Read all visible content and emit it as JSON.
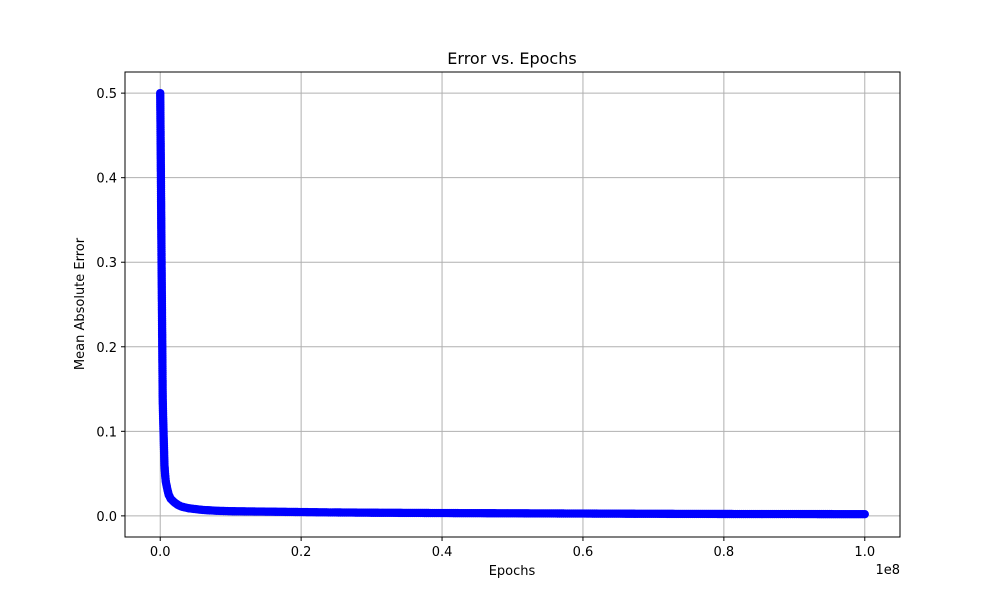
{
  "chart_data": {
    "type": "line",
    "title": "Error vs. Epochs",
    "xlabel": "Epochs",
    "ylabel": "Mean Absolute Error",
    "x_offset_label": "1e8",
    "xlim": [
      -0.05,
      1.05
    ],
    "ylim": [
      -0.025,
      0.525
    ],
    "x_scale_factor": 100000000,
    "x_ticks": [
      0.0,
      0.2,
      0.4,
      0.6,
      0.8,
      1.0
    ],
    "x_tick_labels": [
      "0.0",
      "0.2",
      "0.4",
      "0.6",
      "0.8",
      "1.0"
    ],
    "y_ticks": [
      0.0,
      0.1,
      0.2,
      0.3,
      0.4,
      0.5
    ],
    "y_tick_labels": [
      "0.0",
      "0.1",
      "0.2",
      "0.3",
      "0.4",
      "0.5"
    ],
    "grid": true,
    "marker": "circle",
    "color": "#0000ff",
    "series": [
      {
        "x": [
          0,
          50000,
          100000,
          150000,
          200000,
          250000,
          300000,
          350000,
          400000,
          500000,
          600000,
          700000,
          800000,
          1000000,
          1200000,
          1500000,
          2000000,
          2500000,
          3000000,
          4000000,
          5000000,
          6000000,
          8000000,
          10000000,
          15000000,
          20000000,
          25000000,
          30000000,
          40000000,
          50000000,
          60000000,
          70000000,
          80000000,
          90000000,
          100000000
        ],
        "y": [
          0.5,
          0.45,
          0.4,
          0.34,
          0.29,
          0.24,
          0.19,
          0.14,
          0.12,
          0.09,
          0.06,
          0.048,
          0.04,
          0.032,
          0.025,
          0.02,
          0.016,
          0.013,
          0.011,
          0.009,
          0.008,
          0.007,
          0.006,
          0.0055,
          0.005,
          0.0045,
          0.004,
          0.0037,
          0.0033,
          0.003,
          0.0027,
          0.0024,
          0.0022,
          0.0021,
          0.002
        ]
      }
    ]
  }
}
